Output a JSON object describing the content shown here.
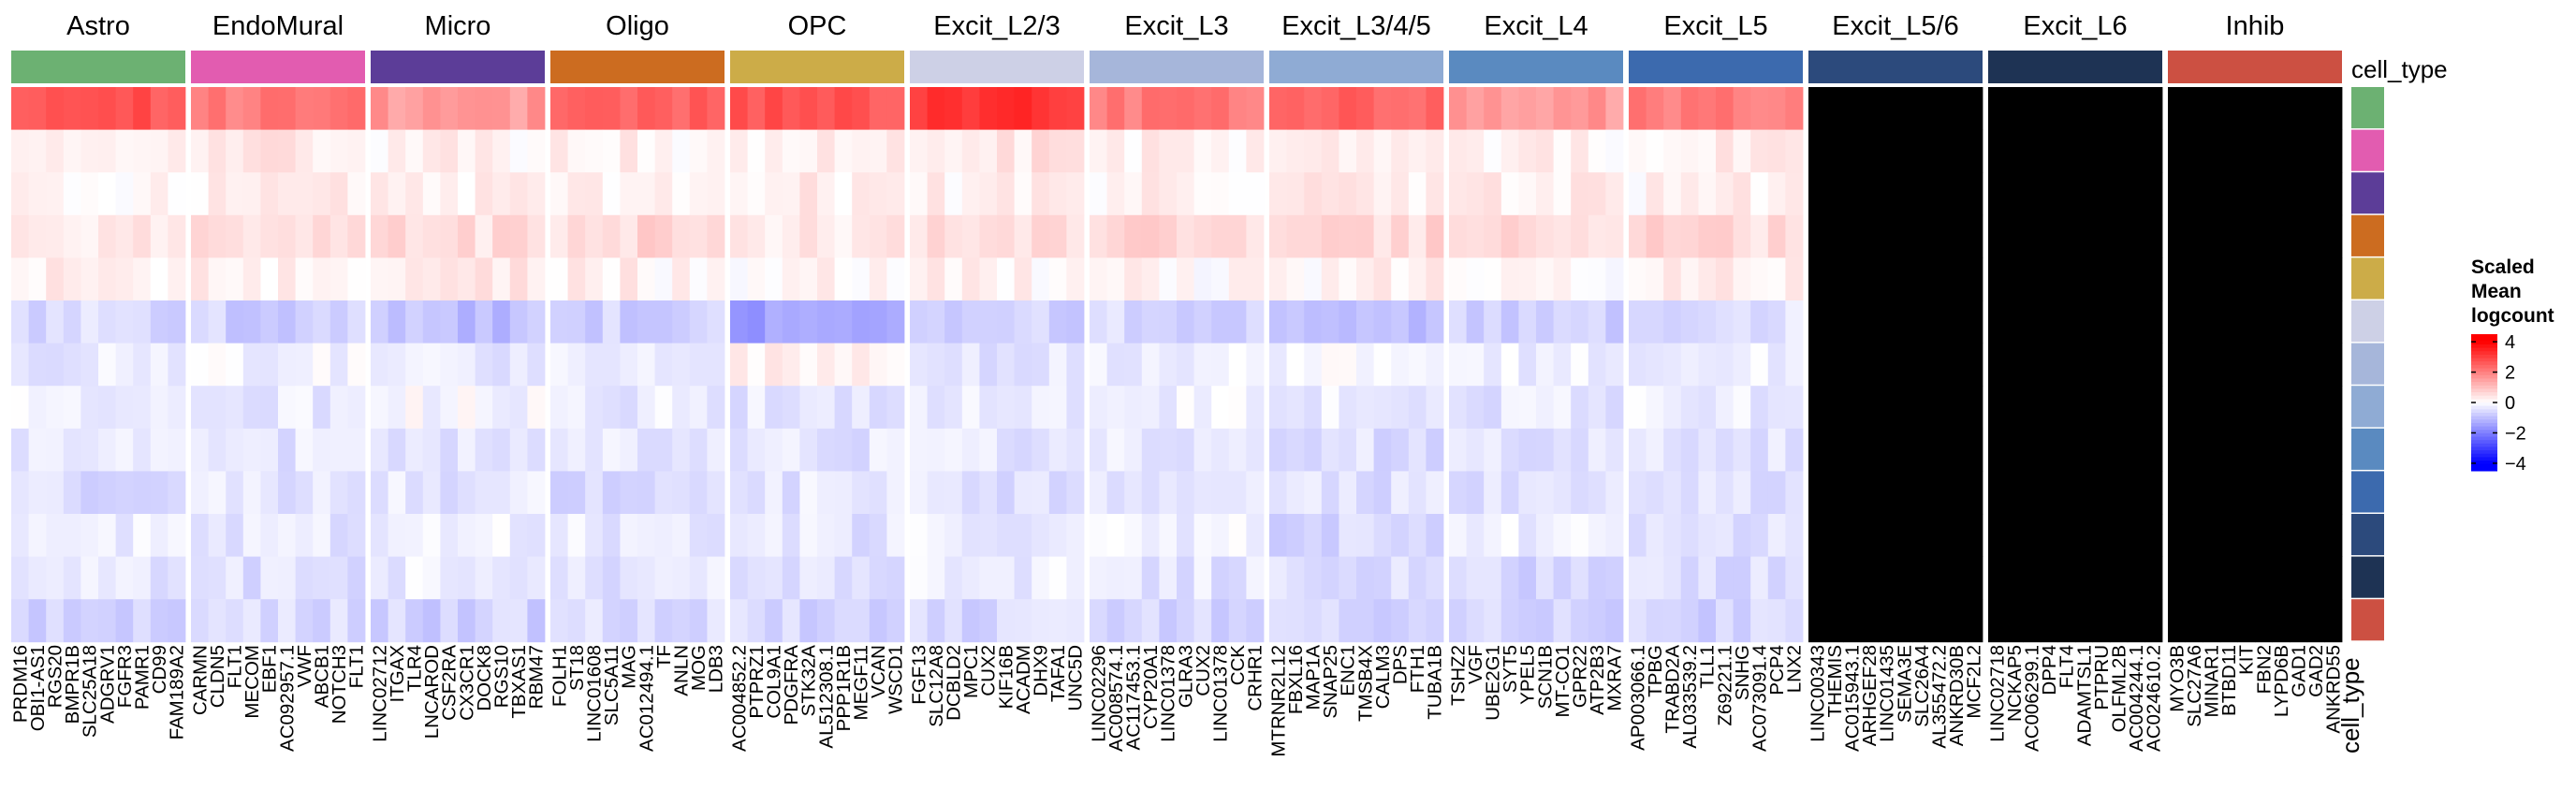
{
  "chart_data": {
    "type": "heatmap",
    "annotation_label_top": "cell_type",
    "annotation_label_bottom": "cell_type",
    "legend": {
      "title_lines": [
        "Scaled",
        "Mean",
        "logcount"
      ],
      "ticks": [
        "4",
        "2",
        "0",
        "−2",
        "−4"
      ],
      "tick_values": [
        4,
        2,
        0,
        -2,
        -4
      ],
      "range": [
        -4.5,
        4.5
      ],
      "colors": {
        "low": "#0000ff",
        "mid": "#ffffff",
        "high": "#ff0000"
      }
    },
    "cell_types": [
      "Astro",
      "EndoMural",
      "Micro",
      "Oligo",
      "OPC",
      "Excit_L2/3",
      "Excit_L3",
      "Excit_L3/4/5",
      "Excit_L4",
      "Excit_L5",
      "Excit_L5/6",
      "Excit_L6",
      "Inhib"
    ],
    "cell_type_colors": [
      "#6cb172",
      "#e25cb0",
      "#5c3d98",
      "#cc6c20",
      "#ccac48",
      "#cdd0e6",
      "#a6b6da",
      "#8fabd4",
      "#5a8ac0",
      "#3c6aae",
      "#2c4a7c",
      "#1e3354",
      "#cc5042"
    ],
    "panels": [
      {
        "title": "Astro",
        "genes": [
          "PRDM16",
          "OBI1-AS1",
          "RGS20",
          "BMPR1B",
          "SLC25A18",
          "ADGRV1",
          "FGFR3",
          "PAMR1",
          "CD99",
          "FAM189A2"
        ]
      },
      {
        "title": "EndoMural",
        "genes": [
          "CARMN",
          "CLDN5",
          "FLT1",
          "MECOM",
          "EBF1",
          "AC092957.1",
          "VWF",
          "ABCB1",
          "NOTCH3",
          "FLT1"
        ]
      },
      {
        "title": "Micro",
        "genes": [
          "LINC02712",
          "ITGAX",
          "TLR4",
          "LNCAROD",
          "CSF2RA",
          "CX3CR1",
          "DOCK8",
          "RGS10",
          "TBXAS1",
          "RBM47"
        ]
      },
      {
        "title": "Oligo",
        "genes": [
          "FOLH1",
          "ST18",
          "LINC01608",
          "SLC5A11",
          "MAG",
          "AC012494.1",
          "TF",
          "ANLN",
          "MOG",
          "LDB3"
        ]
      },
      {
        "title": "OPC",
        "genes": [
          "AC004852.2",
          "PTPRZ1",
          "COL9A1",
          "PDGFRA",
          "STK32A",
          "AL512308.1",
          "PPP1R1B",
          "MEGF11",
          "VCAN",
          "WSCD1"
        ]
      },
      {
        "title": "Excit_L2/3",
        "genes": [
          "FGF13",
          "SLC12A8",
          "DCBLD2",
          "MPC1",
          "CUX2",
          "KIF16B",
          "ACADM",
          "DHX9",
          "TAFA1",
          "UNC5D"
        ]
      },
      {
        "title": "Excit_L3",
        "genes": [
          "LINC02296",
          "AC008574.1",
          "AC117453.1",
          "CYP20A1",
          "LINC01378",
          "GLRA3",
          "CUX2",
          "LINC01378",
          "CCK",
          "CRHR1"
        ]
      },
      {
        "title": "Excit_L3/4/5",
        "genes": [
          "MTRNR2L12",
          "FBXL16",
          "MAP1A",
          "SNAP25",
          "ENC1",
          "TMSB4X",
          "CALM3",
          "DPS",
          "FTH1",
          "TUBA1B"
        ]
      },
      {
        "title": "Excit_L4",
        "genes": [
          "TSHZ2",
          "VGF",
          "UBE2G1",
          "SYT5",
          "YPEL5",
          "SCN1B",
          "MT-CO1",
          "GPR22",
          "ATP2B3",
          "MXRA7"
        ]
      },
      {
        "title": "Excit_L5",
        "genes": [
          "AP003066.1",
          "TPBG",
          "TRABD2A",
          "AL033539.2",
          "TLL1",
          "Z69221.1",
          "SNHG",
          "AC073091.4",
          "PCP4",
          "LNX2"
        ]
      },
      {
        "title": "Excit_L5/6",
        "genes": [
          "LINC00343",
          "THEMIS",
          "AC015943.1",
          "ARHGEF28",
          "LINC01435",
          "SEMA3E",
          "SLC26A4",
          "AL355472.2",
          "ANKRD30B",
          "MCF2L2"
        ]
      },
      {
        "title": "Excit_L6",
        "genes": [
          "LINC02718",
          "NCKAP5",
          "AC006299.1",
          "DPP4",
          "FLT4",
          "ADAMTSL1",
          "PTPRU",
          "OLFML2B",
          "AC004244.1",
          "AC024610.2"
        ]
      },
      {
        "title": "Inhib",
        "genes": [
          "MYO3B",
          "SLC27A6",
          "MINAR1",
          "BTBD11",
          "KIT",
          "FBN2",
          "LYPD6B",
          "GAD1",
          "GAD2",
          "ANKRD55"
        ]
      }
    ],
    "values": [
      [
        2.7,
        2.1,
        1.6,
        2.4,
        2.7,
        3.2,
        2.1,
        2.5,
        1.6,
        2.1
      ],
      [
        0.3,
        0.4,
        0.2,
        0.2,
        0.3,
        0.4,
        0.2,
        0.3,
        0.2,
        0.3
      ],
      [
        0.2,
        0.3,
        0.2,
        0.2,
        0.3,
        0.2,
        0.2,
        0.3,
        0.3,
        0.2
      ],
      [
        0.4,
        0.4,
        0.5,
        0.6,
        0.4,
        0.5,
        0.6,
        0.6,
        0.6,
        0.6
      ],
      [
        0.2,
        0.2,
        0.3,
        0.2,
        0.1,
        0.2,
        0.1,
        0.2,
        0.1,
        0.2
      ],
      [
        -0.6,
        -0.7,
        -1.0,
        -0.7,
        -1.5,
        -0.7,
        -0.6,
        -1.0,
        -0.7,
        -0.5
      ],
      [
        -0.3,
        -0.2,
        -0.3,
        -0.2,
        0.3,
        -0.4,
        -0.2,
        -0.1,
        -0.3,
        -0.3
      ],
      [
        -0.2,
        -0.3,
        -0.1,
        -0.3,
        -0.4,
        -0.3,
        -0.2,
        -0.3,
        -0.4,
        -0.3
      ],
      [
        -0.4,
        -0.4,
        -0.5,
        -0.3,
        -0.4,
        -0.4,
        -0.3,
        -0.5,
        -0.4,
        -0.5
      ],
      [
        -0.5,
        -0.4,
        -0.4,
        -0.6,
        -0.4,
        -0.5,
        -0.4,
        -0.5,
        -0.5,
        -0.4
      ],
      [
        -0.3,
        -0.4,
        -0.2,
        -0.3,
        -0.4,
        -0.3,
        -0.2,
        -0.6,
        -0.3,
        -0.4
      ],
      [
        -0.4,
        -0.5,
        -0.3,
        -0.4,
        -0.5,
        -0.3,
        -0.4,
        -0.5,
        -0.6,
        -0.5
      ],
      [
        -0.7,
        -0.6,
        -0.7,
        -0.6,
        -0.6,
        -0.6,
        -0.7,
        -0.6,
        -0.7,
        -0.7
      ]
    ]
  }
}
